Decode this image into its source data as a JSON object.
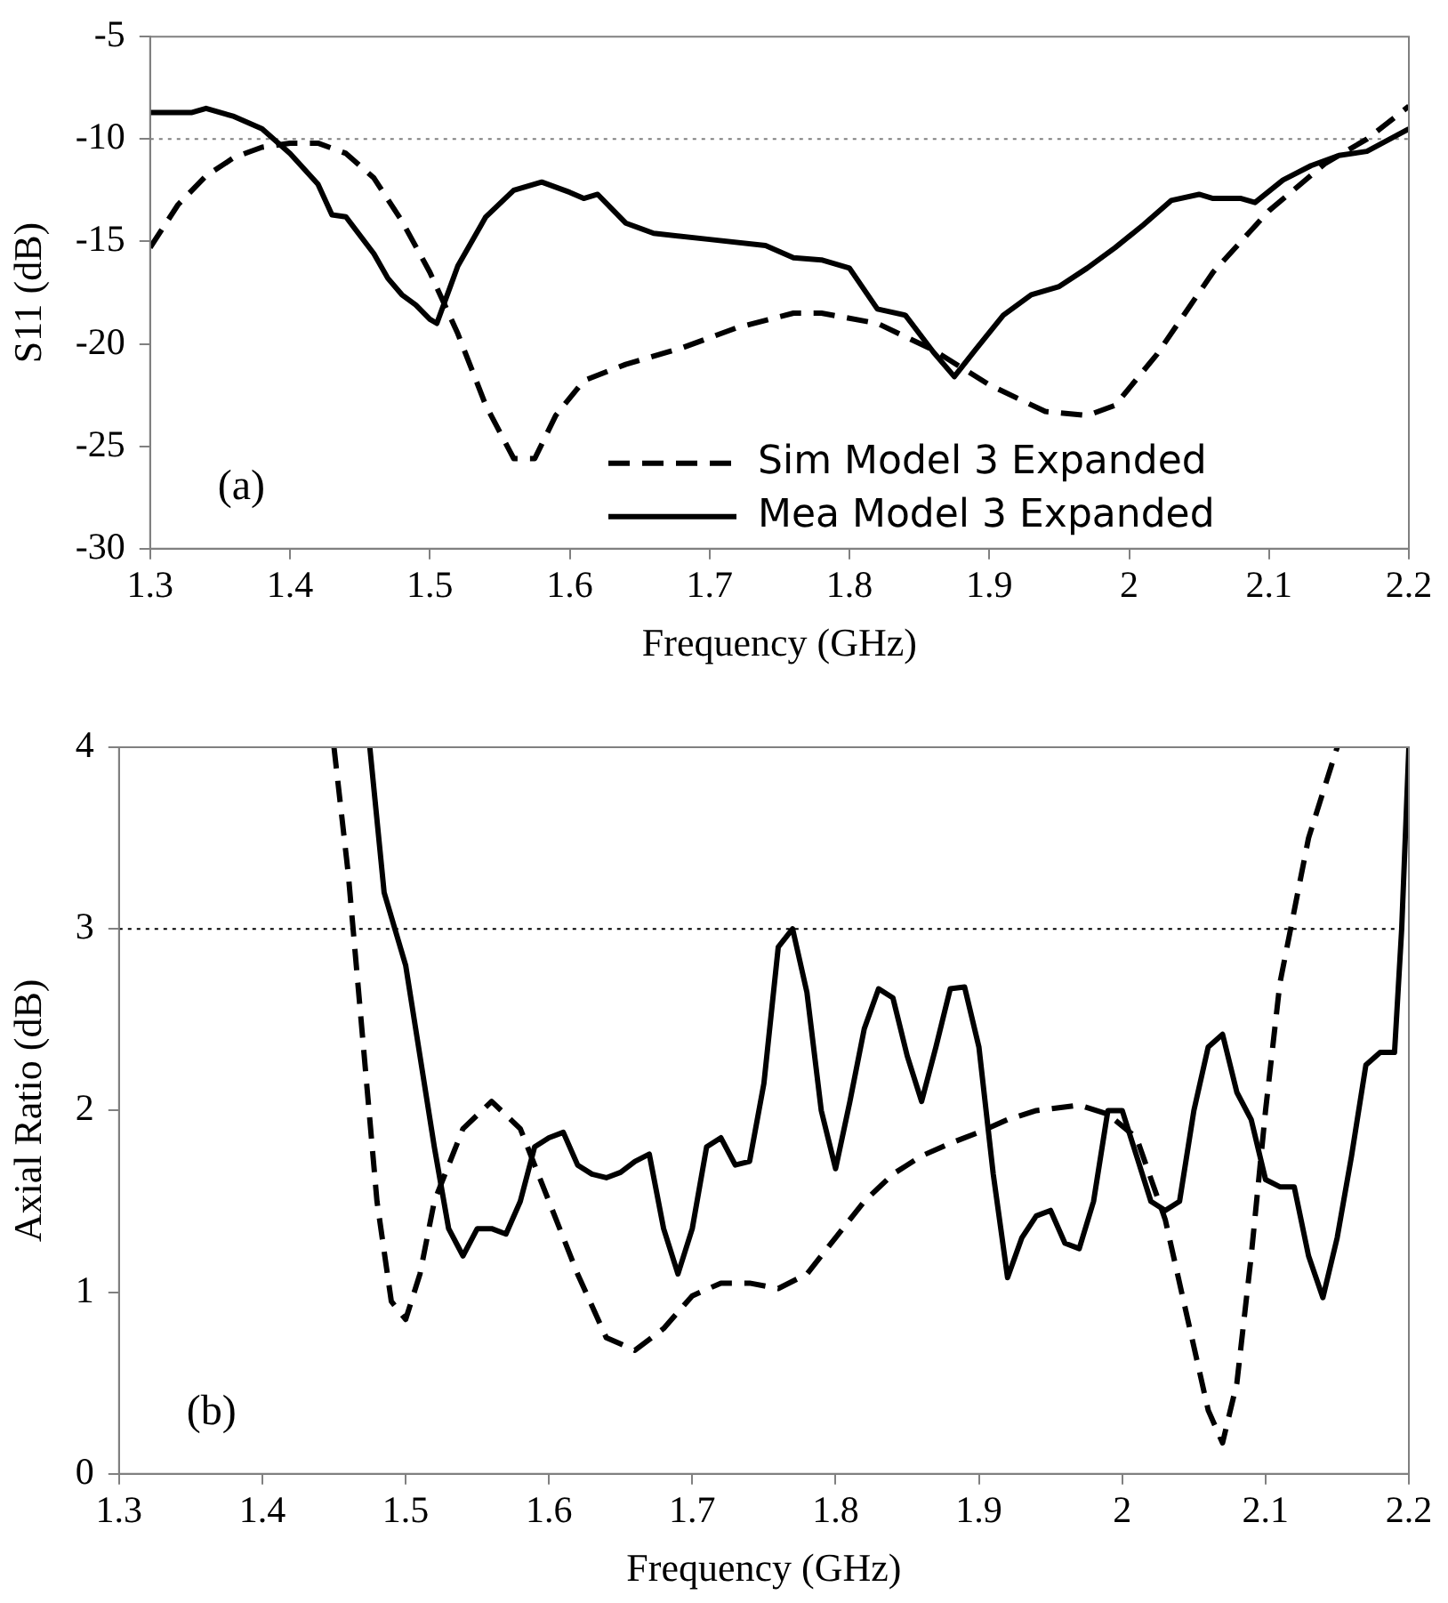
{
  "chart_data": [
    {
      "type": "line",
      "xlabel": "Frequency (GHz)",
      "ylabel": "S11 (dB)",
      "xlim": [
        1.3,
        2.2
      ],
      "xticks": [
        1.3,
        1.4,
        1.5,
        1.6,
        1.7,
        1.8,
        1.9,
        2,
        2.1,
        2.2
      ],
      "ylim": [
        -30,
        -5
      ],
      "yticks": [
        -30,
        -25,
        -20,
        -15,
        -10,
        -5
      ],
      "legend": "bottom right",
      "marker": "none",
      "annotations": [
        "(a)"
      ],
      "ref_lines": [
        {
          "axis": "y",
          "value": -10,
          "color": "#808080",
          "line_style": "dotted"
        }
      ],
      "series": [
        {
          "name": "Sim Model 3 Expanded",
          "color": "#000000",
          "line_style": "dashed",
          "x": [
            1.3,
            1.32,
            1.34,
            1.36,
            1.38,
            1.4,
            1.42,
            1.44,
            1.46,
            1.48,
            1.5,
            1.52,
            1.54,
            1.56,
            1.575,
            1.59,
            1.61,
            1.64,
            1.68,
            1.72,
            1.76,
            1.78,
            1.82,
            1.86,
            1.9,
            1.94,
            1.97,
            1.99,
            2.02,
            2.06,
            2.1,
            2.14,
            2.17,
            2.2
          ],
          "values": [
            -15.3,
            -13.2,
            -11.8,
            -10.9,
            -10.4,
            -10.2,
            -10.2,
            -10.7,
            -11.9,
            -14,
            -16.5,
            -19.5,
            -23,
            -25.6,
            -25.6,
            -23.5,
            -21.8,
            -21,
            -20.2,
            -19.2,
            -18.5,
            -18.5,
            -19,
            -20.3,
            -22,
            -23.3,
            -23.5,
            -23,
            -20.5,
            -16.5,
            -13.5,
            -11.2,
            -10,
            -8.4
          ]
        },
        {
          "name": "Mea Model 3 Expanded",
          "color": "#000000",
          "line_style": "solid",
          "x": [
            1.3,
            1.33,
            1.34,
            1.36,
            1.38,
            1.4,
            1.42,
            1.43,
            1.44,
            1.46,
            1.47,
            1.48,
            1.49,
            1.5,
            1.505,
            1.52,
            1.54,
            1.56,
            1.58,
            1.6,
            1.61,
            1.62,
            1.64,
            1.66,
            1.7,
            1.74,
            1.76,
            1.78,
            1.8,
            1.82,
            1.84,
            1.86,
            1.875,
            1.89,
            1.91,
            1.93,
            1.95,
            1.97,
            1.99,
            2.01,
            2.03,
            2.05,
            2.06,
            2.08,
            2.09,
            2.11,
            2.13,
            2.15,
            2.17,
            2.2
          ],
          "values": [
            -8.7,
            -8.7,
            -8.5,
            -8.9,
            -9.5,
            -10.7,
            -12.2,
            -13.7,
            -13.8,
            -15.6,
            -16.8,
            -17.6,
            -18.1,
            -18.8,
            -19,
            -16.2,
            -13.8,
            -12.5,
            -12.1,
            -12.6,
            -12.9,
            -12.7,
            -14.1,
            -14.6,
            -14.9,
            -15.2,
            -15.8,
            -15.9,
            -16.3,
            -18.3,
            -18.6,
            -20.4,
            -21.6,
            -20.3,
            -18.6,
            -17.6,
            -17.2,
            -16.3,
            -15.3,
            -14.2,
            -13,
            -12.7,
            -12.9,
            -12.9,
            -13.1,
            -12,
            -11.3,
            -10.8,
            -10.6,
            -9.5
          ]
        }
      ]
    },
    {
      "type": "line",
      "xlabel": "Frequency (GHz)",
      "ylabel": "Axial Ratio (dB)",
      "xlim": [
        1.3,
        2.2
      ],
      "xticks": [
        1.3,
        1.4,
        1.5,
        1.6,
        1.7,
        1.8,
        1.9,
        2,
        2.1,
        2.2
      ],
      "ylim": [
        0,
        4
      ],
      "yticks": [
        0,
        1,
        2,
        3,
        4
      ],
      "marker": "none",
      "annotations": [
        "(b)"
      ],
      "ref_lines": [
        {
          "axis": "y",
          "value": 3,
          "color": "#000000",
          "line_style": "dotted"
        }
      ],
      "series": [
        {
          "color": "#000000",
          "line_style": "dashed",
          "x": [
            1.45,
            1.46,
            1.47,
            1.48,
            1.49,
            1.5,
            1.51,
            1.52,
            1.54,
            1.56,
            1.58,
            1.6,
            1.62,
            1.64,
            1.66,
            1.68,
            1.7,
            1.72,
            1.74,
            1.76,
            1.78,
            1.8,
            1.82,
            1.84,
            1.86,
            1.88,
            1.9,
            1.92,
            1.94,
            1.97,
            1.99,
            2.01,
            2.03,
            2.05,
            2.06,
            2.07,
            2.08,
            2.09,
            2.1,
            2.11,
            2.13,
            2.15
          ],
          "values": [
            4,
            3.3,
            2.4,
            1.5,
            0.95,
            0.85,
            1.1,
            1.5,
            1.9,
            2.05,
            1.9,
            1.5,
            1.1,
            0.75,
            0.68,
            0.8,
            0.98,
            1.05,
            1.05,
            1.02,
            1.1,
            1.3,
            1.5,
            1.65,
            1.75,
            1.82,
            1.88,
            1.95,
            2,
            2.03,
            1.98,
            1.85,
            1.4,
            0.7,
            0.35,
            0.17,
            0.5,
            1.2,
            2,
            2.7,
            3.5,
            4
          ]
        },
        {
          "color": "#000000",
          "line_style": "solid",
          "x": [
            1.475,
            1.485,
            1.5,
            1.51,
            1.52,
            1.53,
            1.54,
            1.55,
            1.56,
            1.57,
            1.58,
            1.59,
            1.6,
            1.61,
            1.62,
            1.63,
            1.64,
            1.65,
            1.66,
            1.67,
            1.68,
            1.69,
            1.7,
            1.71,
            1.72,
            1.73,
            1.74,
            1.75,
            1.76,
            1.77,
            1.78,
            1.79,
            1.8,
            1.81,
            1.82,
            1.83,
            1.84,
            1.85,
            1.86,
            1.87,
            1.88,
            1.89,
            1.9,
            1.91,
            1.92,
            1.93,
            1.94,
            1.95,
            1.96,
            1.97,
            1.98,
            1.99,
            2,
            2.01,
            2.02,
            2.03,
            2.04,
            2.05,
            2.06,
            2.07,
            2.08,
            2.09,
            2.1,
            2.11,
            2.12,
            2.13,
            2.14,
            2.15,
            2.16,
            2.17,
            2.18,
            2.19,
            2.195,
            2.2
          ],
          "values": [
            4,
            3.2,
            2.8,
            2.3,
            1.8,
            1.35,
            1.2,
            1.35,
            1.35,
            1.32,
            1.5,
            1.8,
            1.85,
            1.88,
            1.7,
            1.65,
            1.63,
            1.66,
            1.72,
            1.76,
            1.35,
            1.1,
            1.35,
            1.8,
            1.85,
            1.7,
            1.72,
            2.15,
            2.9,
            3,
            2.65,
            2,
            1.68,
            2.05,
            2.45,
            2.67,
            2.62,
            2.3,
            2.05,
            2.35,
            2.67,
            2.68,
            2.35,
            1.65,
            1.08,
            1.3,
            1.42,
            1.45,
            1.27,
            1.24,
            1.5,
            2,
            2,
            1.75,
            1.5,
            1.45,
            1.5,
            2,
            2.35,
            2.42,
            2.1,
            1.95,
            1.62,
            1.58,
            1.58,
            1.2,
            0.97,
            1.3,
            1.75,
            2.25,
            2.32,
            2.32,
            3,
            4
          ]
        }
      ]
    }
  ]
}
